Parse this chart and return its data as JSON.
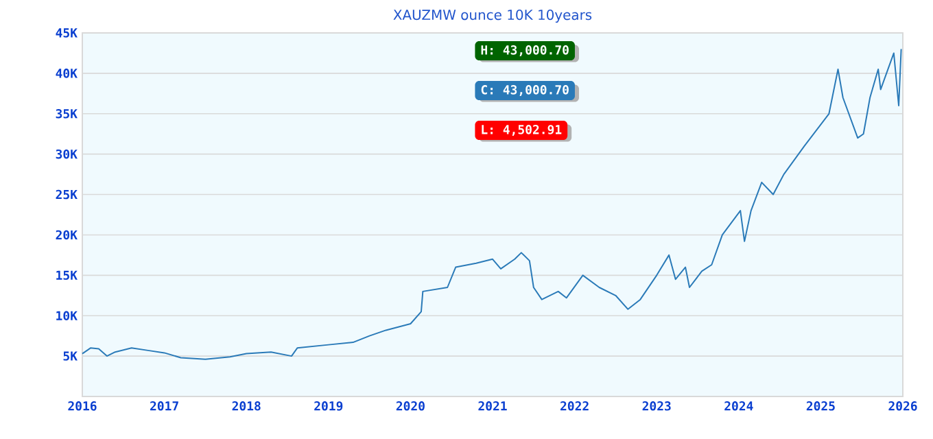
{
  "chart_data": {
    "type": "line",
    "title": "XAUZMW ounce 10K 10years",
    "x": [
      2016.0,
      2016.1,
      2016.2,
      2016.3,
      2016.4,
      2016.6,
      2016.8,
      2017.0,
      2017.2,
      2017.5,
      2017.8,
      2018.0,
      2018.3,
      2018.55,
      2018.62,
      2019.0,
      2019.3,
      2019.5,
      2019.7,
      2020.0,
      2020.13,
      2020.15,
      2020.45,
      2020.55,
      2020.8,
      2021.0,
      2021.1,
      2021.27,
      2021.35,
      2021.45,
      2021.5,
      2021.6,
      2021.8,
      2021.9,
      2022.1,
      2022.3,
      2022.5,
      2022.65,
      2022.8,
      2023.0,
      2023.15,
      2023.23,
      2023.35,
      2023.4,
      2023.55,
      2023.67,
      2023.8,
      2024.02,
      2024.07,
      2024.15,
      2024.28,
      2024.42,
      2024.55,
      2024.8,
      2025.1,
      2025.21,
      2025.27,
      2025.45,
      2025.52,
      2025.6,
      2025.7,
      2025.73,
      2025.89,
      2025.95,
      2025.98
    ],
    "series": [
      {
        "color": "#2a7ab8",
        "values": [
          5300,
          6000,
          5900,
          5000,
          5500,
          6000,
          5700,
          5400,
          4800,
          4600,
          4900,
          5300,
          5500,
          5000,
          6000,
          6400,
          6700,
          7500,
          8200,
          9000,
          10500,
          13000,
          13500,
          16000,
          16500,
          17000,
          15800,
          17000,
          17800,
          16800,
          13500,
          12000,
          13000,
          12200,
          15000,
          13500,
          12500,
          10800,
          12000,
          15000,
          17500,
          14500,
          16000,
          13500,
          15500,
          16300,
          20000,
          23000,
          19200,
          23000,
          26500,
          25000,
          27500,
          31000,
          35000,
          40500,
          37000,
          32000,
          32500,
          37000,
          40500,
          38000,
          42500,
          36000,
          43000
        ]
      }
    ],
    "xlim": [
      2016,
      2026
    ],
    "xticks": [
      2016,
      2017,
      2018,
      2019,
      2020,
      2021,
      2022,
      2023,
      2024,
      2025,
      2026
    ],
    "ylim": [
      0,
      45000
    ],
    "yticks": [
      {
        "value": 5000,
        "label": "5K"
      },
      {
        "value": 10000,
        "label": "10K"
      },
      {
        "value": 15000,
        "label": "15K"
      },
      {
        "value": 20000,
        "label": "20K"
      },
      {
        "value": 25000,
        "label": "25K"
      },
      {
        "value": 30000,
        "label": "30K"
      },
      {
        "value": 35000,
        "label": "35K"
      },
      {
        "value": 40000,
        "label": "40K"
      },
      {
        "value": 45000,
        "label": "45K"
      }
    ],
    "grid": "y",
    "marker": "none",
    "line_style": "solid",
    "annotations": [
      "H: 43,000.70",
      "C: 43,000.70",
      "L: 4,502.91"
    ]
  }
}
